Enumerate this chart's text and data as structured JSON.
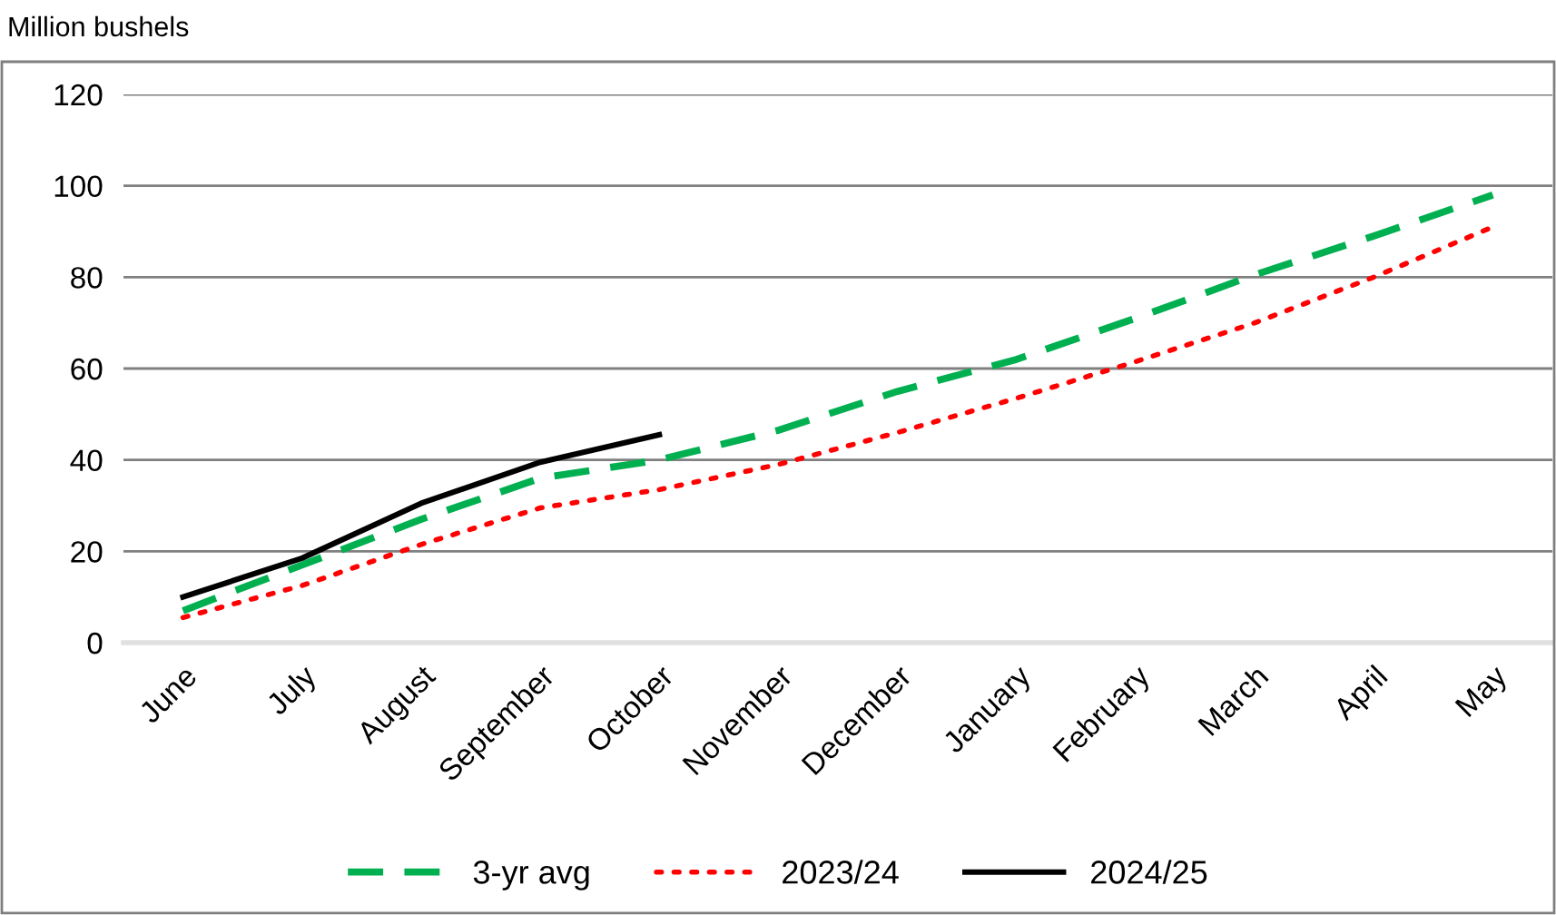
{
  "chart_data": {
    "type": "line",
    "ylabel": "Million bushels",
    "categories": [
      "June",
      "July",
      "August",
      "September",
      "October",
      "November",
      "December",
      "January",
      "February",
      "March",
      "April",
      "May"
    ],
    "series": [
      {
        "name": "3-yr avg",
        "color": "#00b050",
        "line_style": "dashed",
        "values": [
          7,
          17,
          27,
          36,
          40,
          46.5,
          55,
          62,
          71,
          80.5,
          89,
          98
        ]
      },
      {
        "name": "2023/24",
        "color": "#ff0000",
        "line_style": "dotted",
        "values": [
          5.5,
          12.5,
          21.5,
          29.5,
          33.5,
          39,
          46,
          53.5,
          61.5,
          70,
          80,
          91
        ]
      },
      {
        "name": "2024/25",
        "color": "#000000",
        "line_style": "solid",
        "values": [
          10,
          18.5,
          30.5,
          39.5,
          45.5,
          null,
          null,
          null,
          null,
          null,
          null,
          null
        ]
      }
    ],
    "ylim": [
      0,
      120
    ],
    "yticks": [
      0,
      20,
      40,
      60,
      80,
      100,
      120
    ],
    "grid": "y",
    "legend": "bottom",
    "marker": "none"
  }
}
